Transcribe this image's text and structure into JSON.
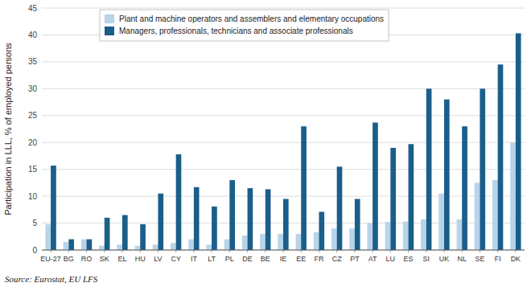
{
  "chart_data": {
    "type": "bar",
    "categories": [
      "EU-27",
      "BG",
      "RO",
      "SK",
      "EL",
      "HU",
      "LV",
      "CY",
      "IT",
      "LT",
      "PL",
      "DE",
      "BE",
      "IE",
      "EE",
      "FR",
      "CZ",
      "PT",
      "AT",
      "LU",
      "ES",
      "SI",
      "UK",
      "NL",
      "SE",
      "FI",
      "DK"
    ],
    "series": [
      {
        "name": "Plant and machine operators and assemblers and elementary occupations",
        "color": "#b8d4e8",
        "values": [
          4.8,
          1.5,
          2.0,
          0.8,
          1.0,
          0.8,
          1.0,
          1.3,
          2.0,
          1.0,
          2.0,
          2.7,
          3.0,
          3.0,
          3.0,
          3.3,
          4.0,
          4.0,
          5.0,
          5.2,
          5.3,
          5.7,
          10.5,
          5.7,
          12.5,
          13.0,
          20.0
        ]
      },
      {
        "name": "Managers, professionals, technicians and associate professionals",
        "color": "#1a5e8a",
        "values": [
          15.7,
          2.0,
          2.0,
          6.0,
          6.5,
          4.8,
          10.5,
          17.8,
          11.7,
          8.1,
          13.0,
          11.5,
          11.3,
          9.5,
          23.0,
          7.1,
          15.5,
          9.5,
          23.7,
          19.0,
          19.7,
          30.0,
          28.0,
          23.0,
          30.0,
          34.5,
          40.3
        ]
      }
    ],
    "y_label": "Participation in LLL, % of employed persons",
    "ylim": [
      0,
      45
    ],
    "yticks": [
      0,
      5,
      10,
      15,
      20,
      25,
      30,
      35,
      40,
      45
    ],
    "grid": true,
    "legend": "upper left",
    "annotations": [
      "Source: Eurostat, EU LFS"
    ]
  }
}
